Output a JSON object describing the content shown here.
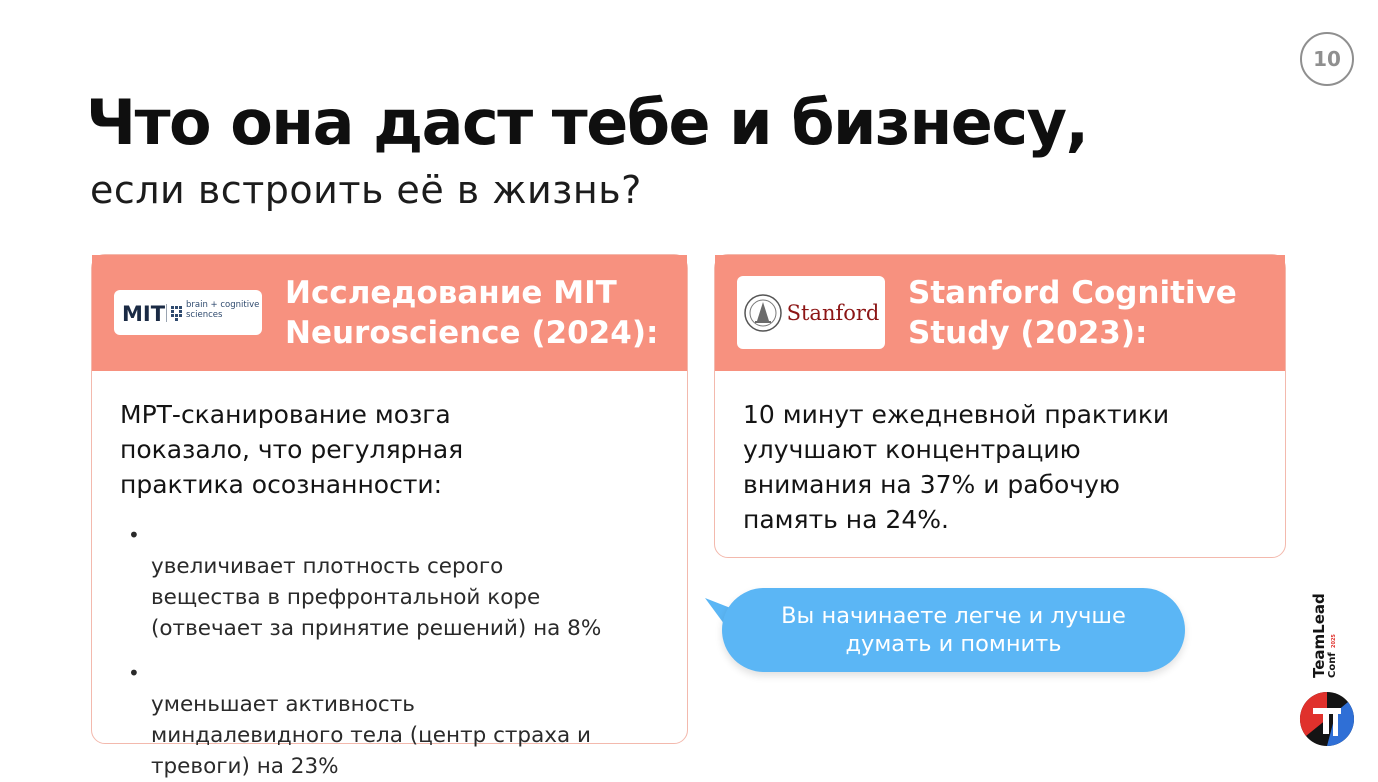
{
  "page": {
    "number": "10"
  },
  "heading": {
    "title": "Что она даст тебе и бизнесу,",
    "subtitle": "если встроить её в жизнь?"
  },
  "cards": [
    {
      "title": "Исследование MIT\nNeuroscience (2024):",
      "logo": {
        "mark": "MIT",
        "text": "brain + cognitive\nsciences"
      },
      "lead": "МРТ-сканирование мозга\nпоказало, что регулярная\nпрактика осознанности:",
      "bullets": [
        "увеличивает плотность серого\nвещества в префронтальной коре\n(отвечает за принятие решений) на 8%",
        "уменьшает активность\nминдалевидного тела (центр страха и\nтревоги) на 23%"
      ]
    },
    {
      "title": "Stanford Cognitive\nStudy (2023):",
      "logo": {
        "text": "Stanford"
      },
      "lead": "10 минут ежедневной практики\nулучшают концентрацию\nвнимания на 37% и рабочую\nпамять на 24%."
    }
  ],
  "callout": {
    "text": "Вы начинаете легче и лучше\nдумать и помнить"
  },
  "brand": {
    "line1": "TeamLead",
    "line2": "Conf",
    "year": "2025"
  },
  "colors": {
    "header_fill": "#f7917f",
    "card_border": "#f3b9ad",
    "bubble": "#5bb6f5",
    "stanford_red": "#8c1515",
    "brand_red": "#e0312c"
  }
}
